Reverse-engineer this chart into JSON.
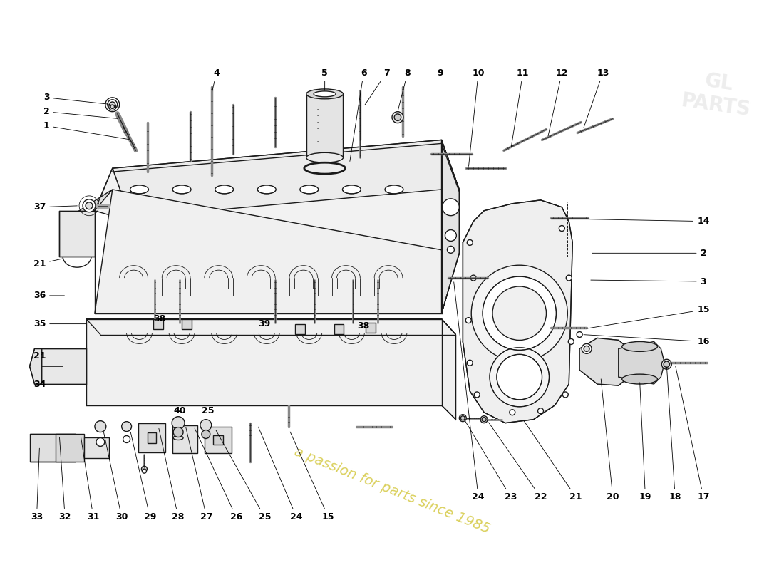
{
  "bg_color": "#ffffff",
  "line_color": "#1a1a1a",
  "fill_color": "#f0f0f0",
  "fill_light": "#f8f8f8",
  "watermark_text": "a passion for parts since 1985",
  "watermark_color": "#d4c840",
  "label_size": 9,
  "figsize": [
    11.0,
    8.0
  ],
  "dpi": 100
}
